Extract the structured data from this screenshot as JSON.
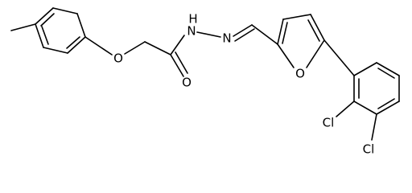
{
  "atoms": {
    "ether_oxygen": "O",
    "carbonyl_oxygen": "O",
    "hydrazide_nitrogen_h": "H",
    "hydrazide_nitrogen": "N",
    "imine_nitrogen": "N",
    "furan_oxygen": "O",
    "chlorine_2": "Cl",
    "chlorine_3": "Cl"
  }
}
